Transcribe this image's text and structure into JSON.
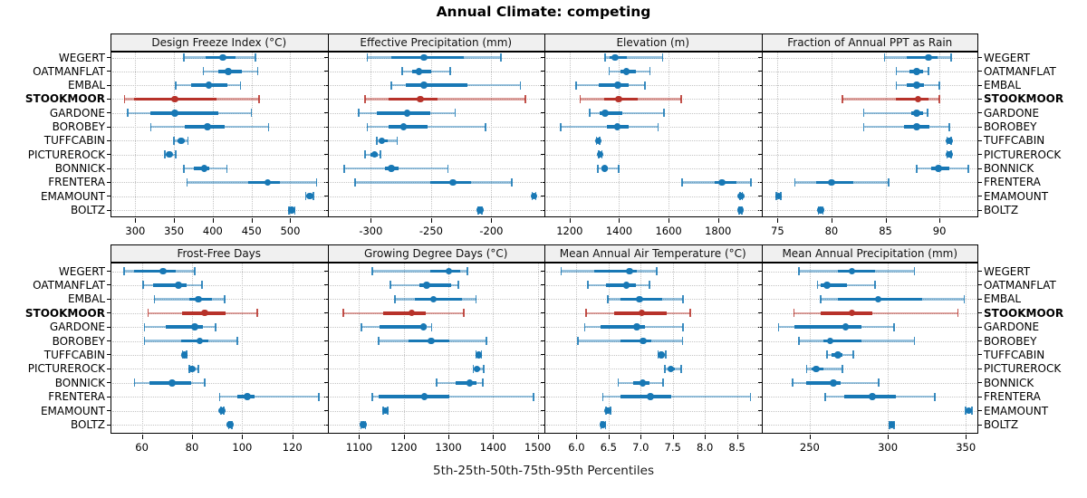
{
  "title": "Annual Climate: competing",
  "caption": "5th-25th-50th-75th-95th Percentiles",
  "percentile_levels": [
    "5th",
    "25th",
    "50th",
    "75th",
    "95th"
  ],
  "stations": [
    "WEGERT",
    "OATMANFLAT",
    "EMBAL",
    "STOOKMOOR",
    "GARDONE",
    "BOROBEY",
    "TUFFCABIN",
    "PICTUREROCK",
    "BONNICK",
    "FRENTERA",
    "EMAMOUNT",
    "BOLTZ"
  ],
  "highlight_station": "STOOKMOOR",
  "colors": {
    "series": "#1878b5",
    "highlight": "#b7322a",
    "grid": "#c4c4c4",
    "strip_bg": "#f0f0f0",
    "border": "#000000"
  },
  "chart_data": [
    {
      "type": "dotplot",
      "title": "Design Freeze Index (°C)",
      "xlim": [
        268,
        548
      ],
      "tick_values": [
        300,
        350,
        400,
        450,
        500
      ],
      "tick_labels": [
        "300",
        "350",
        "400",
        "450",
        "500"
      ],
      "values": [
        [
          363,
          391,
          413,
          429,
          455
        ],
        [
          388,
          407,
          420,
          438,
          458
        ],
        [
          352,
          372,
          395,
          419,
          436
        ],
        [
          286,
          298,
          351,
          405,
          460
        ],
        [
          290,
          319,
          351,
          407,
          450
        ],
        [
          320,
          364,
          393,
          415,
          472
        ],
        [
          350,
          355,
          359,
          364,
          368
        ],
        [
          338,
          341,
          344,
          348,
          352
        ],
        [
          363,
          376,
          389,
          396,
          418
        ],
        [
          367,
          446,
          471,
          487,
          534
        ],
        [
          520,
          523,
          525,
          527,
          530
        ],
        [
          498,
          500,
          502,
          504,
          506
        ]
      ]
    },
    {
      "type": "dotplot",
      "title": "Effective Precipitation (mm)",
      "xlim": [
        -336,
        -156
      ],
      "tick_values": [
        -300,
        -250,
        -200
      ],
      "tick_labels": [
        "-300",
        "-250",
        "-200"
      ],
      "values": [
        [
          -303,
          -283,
          -256,
          -223,
          -192
        ],
        [
          -274,
          -266,
          -260,
          -250,
          -234
        ],
        [
          -283,
          -271,
          -256,
          -220,
          -176
        ],
        [
          -305,
          -285,
          -259,
          -245,
          -172
        ],
        [
          -310,
          -295,
          -270,
          -251,
          -230
        ],
        [
          -303,
          -285,
          -273,
          -253,
          -205
        ],
        [
          -295,
          -293,
          -291,
          -286,
          -278
        ],
        [
          -305,
          -300,
          -297,
          -294,
          -292
        ],
        [
          -322,
          -288,
          -283,
          -277,
          -236
        ],
        [
          -313,
          -251,
          -232,
          -217,
          -183
        ],
        [
          -166,
          -165,
          -164.5,
          -164,
          -163
        ],
        [
          -211,
          -210,
          -209.5,
          -209,
          -208
        ]
      ]
    },
    {
      "type": "dotplot",
      "title": "Elevation (m)",
      "xlim": [
        1098,
        1975
      ],
      "tick_values": [
        1200,
        1400,
        1600,
        1800
      ],
      "tick_labels": [
        "1200",
        "1400",
        "1600",
        "1800"
      ],
      "values": [
        [
          1343,
          1360,
          1384,
          1433,
          1576
        ],
        [
          1360,
          1404,
          1430,
          1467,
          1524
        ],
        [
          1227,
          1319,
          1394,
          1440,
          1505
        ],
        [
          1242,
          1339,
          1398,
          1476,
          1651
        ],
        [
          1282,
          1321,
          1343,
          1412,
          1582
        ],
        [
          1164,
          1352,
          1392,
          1440,
          1558
        ],
        [
          1308,
          1312,
          1315,
          1318,
          1322
        ],
        [
          1317,
          1321,
          1324,
          1327,
          1331
        ],
        [
          1315,
          1328,
          1342,
          1355,
          1398
        ],
        [
          1655,
          1788,
          1816,
          1873,
          1933
        ],
        [
          1888,
          1891,
          1893,
          1895,
          1898
        ],
        [
          1886,
          1889,
          1891,
          1893,
          1896
        ]
      ]
    },
    {
      "type": "dotplot",
      "title": "Fraction of Annual PPT as Rain",
      "xlim": [
        73.5,
        93.6
      ],
      "tick_values": [
        75,
        80,
        85,
        90
      ],
      "tick_labels": [
        "75",
        "80",
        "85",
        "90"
      ],
      "values": [
        [
          84.9,
          87.0,
          89.0,
          89.8,
          91.1
        ],
        [
          86.0,
          87.2,
          87.9,
          88.5,
          89.0
        ],
        [
          86.0,
          87.0,
          87.9,
          88.6,
          90.0
        ],
        [
          81.0,
          86.0,
          88.0,
          89.0,
          90.0
        ],
        [
          83.0,
          87.4,
          87.9,
          88.5,
          88.9
        ],
        [
          83.0,
          86.7,
          87.9,
          89.1,
          90.9
        ],
        [
          90.7,
          90.8,
          90.9,
          91.0,
          91.1
        ],
        [
          90.7,
          90.8,
          90.9,
          91.0,
          91.1
        ],
        [
          87.9,
          89.2,
          89.9,
          90.9,
          92.7
        ],
        [
          76.6,
          78.6,
          80.0,
          82.0,
          85.3
        ],
        [
          74.9,
          75.0,
          75.1,
          75.2,
          75.3
        ],
        [
          78.8,
          78.9,
          79.0,
          79.1,
          79.2
        ]
      ]
    },
    {
      "type": "dotplot",
      "title": "Frost-Free Days",
      "xlim": [
        47.5,
        134
      ],
      "tick_values": [
        60,
        80,
        100,
        120
      ],
      "tick_labels": [
        "60",
        "80",
        "100",
        "120"
      ],
      "values": [
        [
          53,
          57,
          68.5,
          73.5,
          81
        ],
        [
          60.5,
          64.5,
          74.5,
          78,
          84
        ],
        [
          65,
          79,
          82.5,
          88,
          93
        ],
        [
          62.5,
          76,
          85,
          93.5,
          106
        ],
        [
          61,
          69.5,
          81,
          84.5,
          89.5
        ],
        [
          61,
          75.5,
          83,
          86.5,
          98
        ],
        [
          76.2,
          76.6,
          77,
          77.3,
          77.8
        ],
        [
          79,
          79.5,
          80,
          81,
          82.5
        ],
        [
          57,
          63,
          72,
          79.5,
          85
        ],
        [
          91,
          98,
          102,
          105,
          130.5
        ],
        [
          91.5,
          91.8,
          92,
          92.3,
          92.6
        ],
        [
          94.6,
          94.9,
          95.2,
          95.5,
          95.8
        ]
      ]
    },
    {
      "type": "dotplot",
      "title": "Growing Degree Days (°C)",
      "xlim": [
        1029,
        1515
      ],
      "tick_values": [
        1100,
        1200,
        1300,
        1400,
        1500
      ],
      "tick_labels": [
        "1100",
        "1200",
        "1300",
        "1400",
        "1500"
      ],
      "values": [
        [
          1129,
          1259,
          1301,
          1326,
          1343
        ],
        [
          1170,
          1235,
          1251,
          1306,
          1322
        ],
        [
          1180,
          1225,
          1266,
          1330,
          1362
        ],
        [
          1065,
          1154,
          1218,
          1250,
          1335
        ],
        [
          1105,
          1145,
          1244,
          1252,
          1262
        ],
        [
          1144,
          1211,
          1261,
          1302,
          1385
        ],
        [
          1362,
          1365,
          1368,
          1371,
          1374
        ],
        [
          1356,
          1360,
          1364,
          1370,
          1379
        ],
        [
          1274,
          1317,
          1348,
          1363,
          1377
        ],
        [
          1129,
          1144,
          1246,
          1301,
          1491
        ],
        [
          1154,
          1157,
          1159,
          1161,
          1164
        ],
        [
          1104,
          1107,
          1109,
          1111,
          1114
        ]
      ]
    },
    {
      "type": "dotplot",
      "title": "Mean Annual Air Temperature (°C)",
      "xlim": [
        5.5,
        8.88
      ],
      "tick_values": [
        6.0,
        6.5,
        7.0,
        7.5,
        8.0,
        8.5
      ],
      "tick_labels": [
        "6.0",
        "6.5",
        "7.0",
        "7.5",
        "8.0",
        "8.5"
      ],
      "values": [
        [
          5.76,
          6.27,
          6.83,
          6.94,
          7.25
        ],
        [
          6.18,
          6.46,
          6.78,
          6.92,
          7.14
        ],
        [
          6.49,
          6.69,
          6.98,
          7.33,
          7.66
        ],
        [
          6.15,
          6.58,
          7.02,
          7.4,
          7.77
        ],
        [
          6.13,
          6.37,
          6.94,
          7.07,
          7.66
        ],
        [
          6.02,
          6.69,
          7.04,
          7.17,
          7.65
        ],
        [
          7.27,
          7.3,
          7.32,
          7.36,
          7.39
        ],
        [
          7.38,
          7.43,
          7.47,
          7.53,
          7.63
        ],
        [
          6.65,
          6.88,
          7.03,
          7.14,
          7.35
        ],
        [
          6.41,
          6.69,
          7.15,
          7.47,
          8.71
        ],
        [
          6.46,
          6.48,
          6.49,
          6.51,
          6.53
        ],
        [
          6.38,
          6.4,
          6.41,
          6.43,
          6.45
        ]
      ]
    },
    {
      "type": "dotplot",
      "title": "Mean Annual Precipitation (mm)",
      "xlim": [
        219,
        358
      ],
      "tick_values": [
        250,
        300,
        350
      ],
      "tick_labels": [
        "250",
        "300",
        "350"
      ],
      "values": [
        [
          243,
          268,
          277,
          292,
          317
        ],
        [
          255,
          257,
          261,
          274,
          292
        ],
        [
          257,
          268,
          294,
          322,
          349
        ],
        [
          240,
          257,
          277,
          290,
          345
        ],
        [
          230,
          240,
          273,
          283,
          304
        ],
        [
          243,
          259,
          263,
          283,
          317
        ],
        [
          261,
          264,
          268,
          271,
          278
        ],
        [
          248,
          251,
          254,
          259,
          271
        ],
        [
          239,
          248,
          265,
          270,
          294
        ],
        [
          260,
          272,
          290,
          305,
          330
        ],
        [
          350,
          351,
          352,
          353,
          354
        ],
        [
          301,
          302,
          302.5,
          303,
          304
        ]
      ]
    }
  ]
}
